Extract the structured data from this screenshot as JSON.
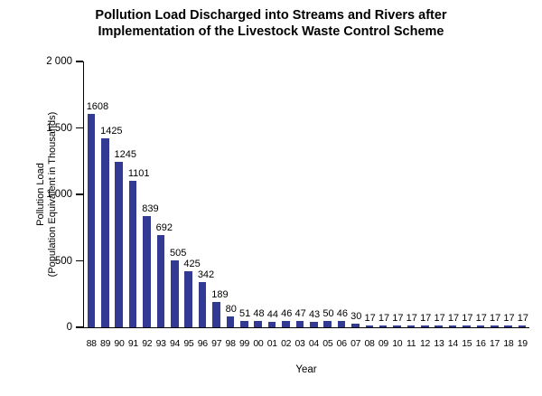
{
  "title": {
    "lines": [
      "Pollution Load Discharged into Streams and Rivers after",
      "Implementation of the Livestock Waste Control Scheme"
    ]
  },
  "chart_data": {
    "type": "bar",
    "title": "Pollution Load Discharged into Streams and Rivers after Implementation of the Livestock Waste Control Scheme",
    "xlabel": "Year",
    "ylabel": "Pollution Load (Population Equivalent in Thousands)",
    "ylabel_lines": [
      "Pollution Load",
      "(Population Equivalent in Thousands)"
    ],
    "ylim": [
      0,
      2000
    ],
    "ytick_interval": 500,
    "ytick_labels": [
      "0",
      "500",
      "1 000",
      "1 500",
      "2 000"
    ],
    "grid": false,
    "legend": false,
    "data_labels_visible": true,
    "bar_color": "#333A94",
    "categories": [
      "88",
      "89",
      "90",
      "91",
      "92",
      "93",
      "94",
      "95",
      "96",
      "97",
      "98",
      "99",
      "00",
      "01",
      "02",
      "03",
      "04",
      "05",
      "06",
      "07",
      "08",
      "09",
      "10",
      "11",
      "12",
      "13",
      "14",
      "15",
      "16",
      "17",
      "18",
      "19"
    ],
    "values": [
      1608,
      1425,
      1245,
      1101,
      839,
      692,
      505,
      425,
      342,
      189,
      80,
      51,
      48,
      44,
      46,
      47,
      43,
      50,
      46,
      30,
      17,
      17,
      17,
      17,
      17,
      17,
      17,
      17,
      17,
      17,
      17,
      17
    ]
  }
}
